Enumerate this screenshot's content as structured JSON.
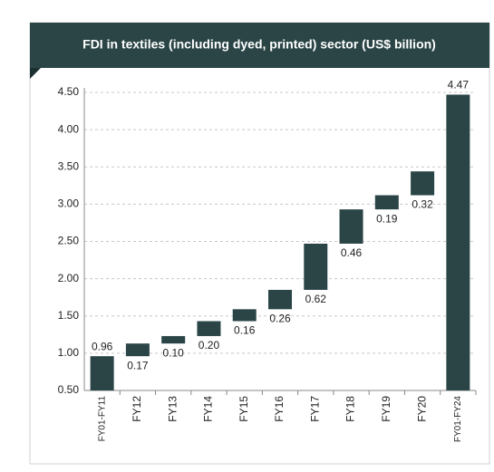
{
  "chart_data": {
    "type": "waterfall",
    "title": "FDI in textiles (including dyed, printed) sector (US$ billion)",
    "categories": [
      "FY01-FY11",
      "FY12",
      "FY13",
      "FY14",
      "FY15",
      "FY16",
      "FY17",
      "FY18",
      "FY19",
      "FY20",
      "FY01-FY24"
    ],
    "values": [
      0.96,
      0.17,
      0.1,
      0.2,
      0.16,
      0.26,
      0.62,
      0.46,
      0.19,
      0.32,
      4.47
    ],
    "value_labels": [
      "0.96",
      "0.17",
      "0.10",
      "0.20",
      "0.16",
      "0.26",
      "0.62",
      "0.46",
      "0.19",
      "0.32",
      "4.47"
    ],
    "is_total": [
      true,
      false,
      false,
      false,
      false,
      false,
      false,
      false,
      false,
      false,
      true
    ],
    "color": "#2b4547",
    "ylim": [
      0.5,
      4.5
    ],
    "yticks": [
      {
        "value": 0.5,
        "label": "0.50"
      },
      {
        "value": 1.0,
        "label": "1.00"
      },
      {
        "value": 1.5,
        "label": "1.50"
      },
      {
        "value": 2.0,
        "label": "2.00"
      },
      {
        "value": 2.5,
        "label": "2.50"
      },
      {
        "value": 3.0,
        "label": "3.00"
      },
      {
        "value": 3.5,
        "label": "3.50"
      },
      {
        "value": 4.0,
        "label": "4.00"
      },
      {
        "value": 4.5,
        "label": "4.50"
      }
    ],
    "grid": true
  }
}
